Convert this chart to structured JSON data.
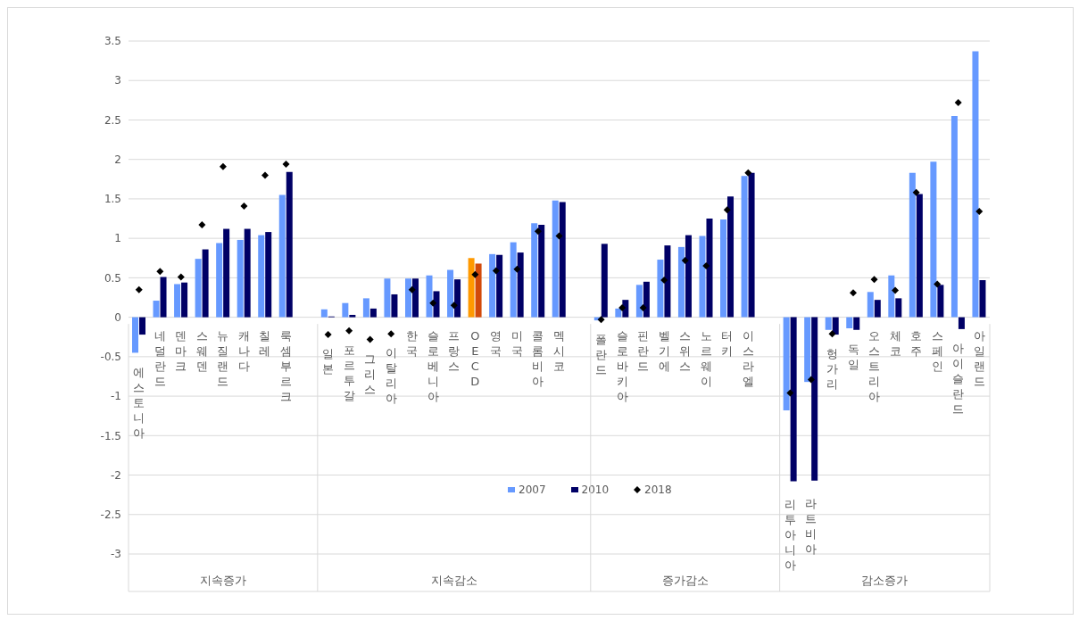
{
  "chart_data": {
    "type": "bar",
    "categories": [
      "에스토니아",
      "네덜란드",
      "덴마크",
      "스웨덴",
      "뉴질랜드",
      "캐나다",
      "칠레",
      "룩셈부르크",
      null,
      "일본",
      "포르투갈",
      "그리스",
      "이탈리아",
      "한국",
      "슬로베니아",
      "프랑스",
      "OECD",
      "영국",
      "미국",
      "콜롬비아",
      "멕시코",
      null,
      "폴란드",
      "슬로바키아",
      "핀란드",
      "벨기에",
      "스위스",
      "노르웨이",
      "터키",
      "이스라엘",
      null,
      "리투아니아",
      "라트비아",
      "헝가리",
      "독일",
      "오스트리아",
      "체코",
      "호주",
      "스페인",
      "아이슬란드",
      "아일랜드"
    ],
    "series": [
      {
        "name": "2007",
        "color": "#6699ff",
        "colors": [
          "#6699ff",
          "#6699ff",
          "#6699ff",
          "#6699ff",
          "#6699ff",
          "#6699ff",
          "#6699ff",
          "#6699ff",
          null,
          "#6699ff",
          "#6699ff",
          "#6699ff",
          "#6699ff",
          "#6699ff",
          "#6699ff",
          "#6699ff",
          "#ff9900",
          "#6699ff",
          "#6699ff",
          "#6699ff",
          "#6699ff",
          null,
          "#6699ff",
          "#6699ff",
          "#6699ff",
          "#6699ff",
          "#6699ff",
          "#6699ff",
          "#6699ff",
          "#6699ff",
          null,
          "#6699ff",
          "#6699ff",
          "#6699ff",
          "#6699ff",
          "#6699ff",
          "#6699ff",
          "#6699ff",
          "#6699ff",
          "#6699ff",
          "#6699ff"
        ],
        "values": [
          -0.45,
          0.21,
          0.42,
          0.74,
          0.94,
          0.98,
          1.04,
          1.55,
          null,
          0.1,
          0.18,
          0.24,
          0.49,
          0.49,
          0.53,
          0.6,
          0.75,
          0.8,
          0.95,
          1.19,
          1.48,
          null,
          -0.04,
          0.11,
          0.41,
          0.73,
          0.89,
          1.03,
          1.24,
          1.79,
          null,
          -1.18,
          -0.82,
          -0.16,
          -0.14,
          0.32,
          0.53,
          1.83,
          1.97,
          2.55,
          3.37
        ]
      },
      {
        "name": "2010",
        "color": "#000066",
        "colors": [
          "#000066",
          "#000066",
          "#000066",
          "#000066",
          "#000066",
          "#000066",
          "#000066",
          "#000066",
          null,
          "#000066",
          "#000066",
          "#000066",
          "#000066",
          "#000066",
          "#000066",
          "#000066",
          "#d24a0a",
          "#000066",
          "#000066",
          "#000066",
          "#000066",
          null,
          "#000066",
          "#000066",
          "#000066",
          "#000066",
          "#000066",
          "#000066",
          "#000066",
          "#000066",
          null,
          "#000066",
          "#000066",
          "#000066",
          "#000066",
          "#000066",
          "#000066",
          "#000066",
          "#000066",
          "#000066",
          "#000066"
        ],
        "values": [
          -0.22,
          0.51,
          0.44,
          0.86,
          1.12,
          1.12,
          1.08,
          1.84,
          null,
          0.01,
          0.03,
          0.11,
          0.29,
          0.49,
          0.33,
          0.48,
          0.68,
          0.79,
          0.82,
          1.17,
          1.46,
          null,
          0.93,
          0.22,
          0.45,
          0.91,
          1.04,
          1.25,
          1.53,
          1.83,
          null,
          -2.08,
          -2.07,
          -0.22,
          -0.16,
          0.22,
          0.24,
          1.56,
          0.41,
          -0.15,
          0.47
        ]
      },
      {
        "name": "2018",
        "type": "scatter",
        "color": "#000000",
        "values": [
          0.35,
          0.58,
          0.51,
          1.17,
          1.91,
          1.41,
          1.8,
          1.94,
          null,
          -0.22,
          -0.17,
          -0.28,
          -0.21,
          0.35,
          0.18,
          0.15,
          0.54,
          0.59,
          0.61,
          1.09,
          1.03,
          null,
          -0.03,
          0.12,
          0.12,
          0.47,
          0.72,
          0.65,
          1.36,
          1.83,
          null,
          -0.96,
          -0.79,
          -0.21,
          0.31,
          0.48,
          0.34,
          1.58,
          0.42,
          2.72,
          1.34
        ]
      }
    ],
    "annotations": [
      "지속증가",
      "지속감소",
      "증가감소",
      "감소증가"
    ],
    "ylim": [
      -3,
      3.5
    ],
    "yticks": [
      -3,
      -2.5,
      -2,
      -1.5,
      -1,
      -0.5,
      0,
      0.5,
      1,
      1.5,
      2,
      2.5,
      3,
      3.5
    ],
    "grid": "y",
    "legend": "bottom",
    "marker": "diamond"
  }
}
